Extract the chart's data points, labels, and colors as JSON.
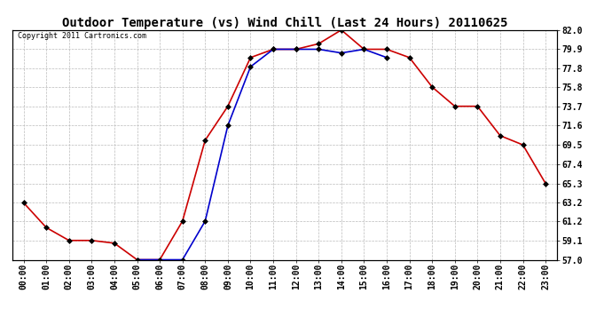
{
  "title": "Outdoor Temperature (vs) Wind Chill (Last 24 Hours) 20110625",
  "copyright": "Copyright 2011 Cartronics.com",
  "hours": [
    "00:00",
    "01:00",
    "02:00",
    "03:00",
    "04:00",
    "05:00",
    "06:00",
    "07:00",
    "08:00",
    "09:00",
    "10:00",
    "11:00",
    "12:00",
    "13:00",
    "14:00",
    "15:00",
    "16:00",
    "17:00",
    "18:00",
    "19:00",
    "20:00",
    "21:00",
    "22:00",
    "23:00"
  ],
  "temp": [
    63.2,
    60.5,
    59.1,
    59.1,
    58.8,
    57.0,
    57.0,
    61.2,
    70.0,
    73.7,
    79.0,
    79.9,
    79.9,
    80.5,
    82.0,
    79.9,
    79.9,
    79.0,
    75.8,
    73.7,
    73.7,
    70.5,
    69.5,
    65.3
  ],
  "wind_chill": [
    null,
    null,
    null,
    null,
    null,
    57.0,
    57.0,
    57.0,
    61.2,
    71.6,
    78.0,
    79.9,
    79.9,
    79.9,
    79.5,
    79.9,
    79.0,
    null,
    null,
    null,
    null,
    null,
    null,
    null
  ],
  "ylim": [
    57.0,
    82.0
  ],
  "yticks": [
    57.0,
    59.1,
    61.2,
    63.2,
    65.3,
    67.4,
    69.5,
    71.6,
    73.7,
    75.8,
    77.8,
    79.9,
    82.0
  ],
  "temp_color": "#cc0000",
  "wind_chill_color": "#0000cc",
  "bg_color": "#ffffff",
  "grid_color": "#bbbbbb",
  "marker_size": 3,
  "line_width": 1.2,
  "title_fontsize": 10,
  "tick_fontsize": 7,
  "copyright_fontsize": 6
}
